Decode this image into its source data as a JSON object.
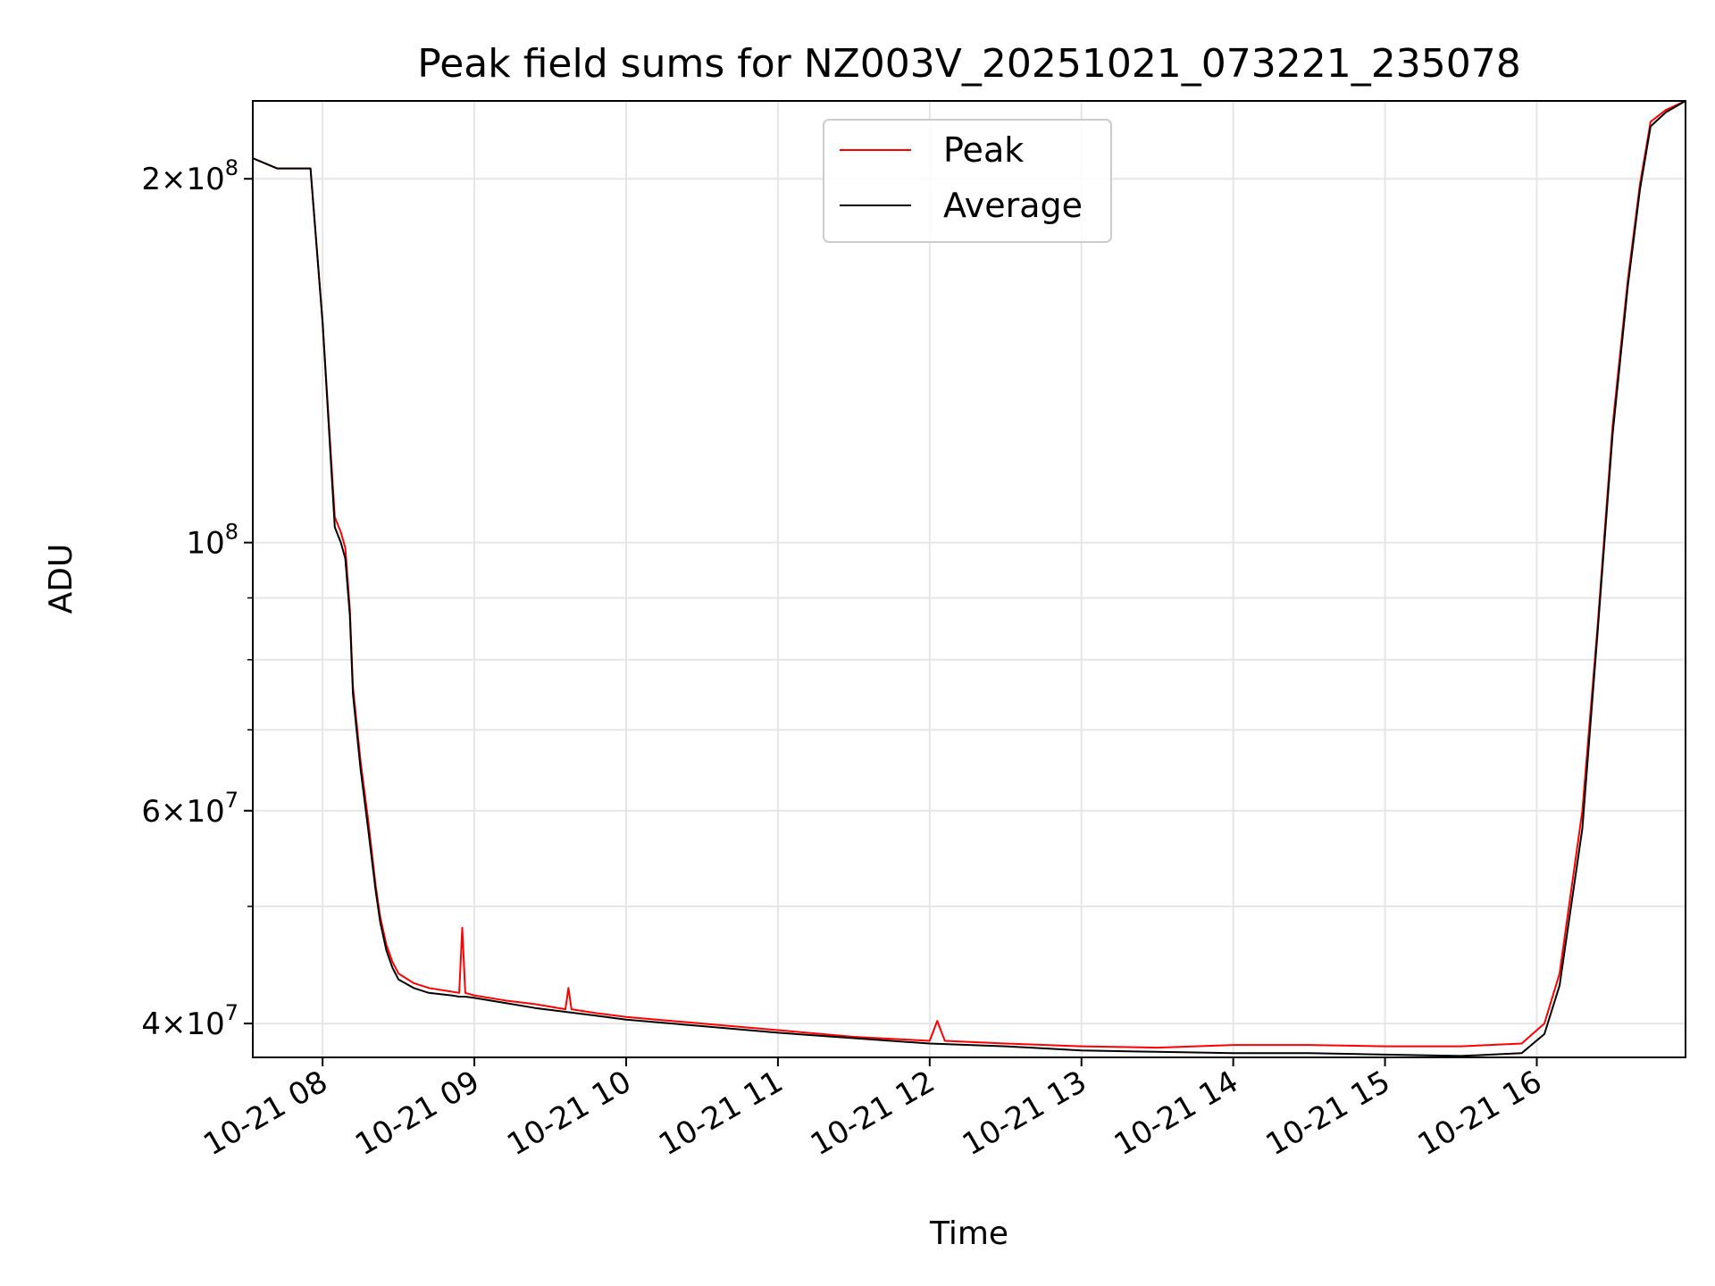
{
  "chart_data": {
    "type": "line",
    "title": "Peak field sums for NZ003V_20251021_073221_235078",
    "xlabel": "Time",
    "ylabel": "ADU",
    "x_unit": "hours since 10-21 00:00",
    "xlim": [
      7.54,
      16.98
    ],
    "ylim": [
      37500000,
      232000000
    ],
    "yscale": "log",
    "grid": true,
    "legend_position": "top-center",
    "x_ticks": [
      {
        "value": 8,
        "label": "10-21 08"
      },
      {
        "value": 9,
        "label": "10-21 09"
      },
      {
        "value": 10,
        "label": "10-21 10"
      },
      {
        "value": 11,
        "label": "10-21 11"
      },
      {
        "value": 12,
        "label": "10-21 12"
      },
      {
        "value": 13,
        "label": "10-21 13"
      },
      {
        "value": 14,
        "label": "10-21 14"
      },
      {
        "value": 15,
        "label": "10-21 15"
      },
      {
        "value": 16,
        "label": "10-21 16"
      }
    ],
    "y_major_ticks": [
      {
        "value": 40000000,
        "mantissa": "4",
        "exponent": "7"
      },
      {
        "value": 60000000,
        "mantissa": "6",
        "exponent": "7"
      },
      {
        "value": 100000000,
        "mantissa": "",
        "exponent": "8"
      },
      {
        "value": 200000000,
        "mantissa": "2",
        "exponent": "8"
      }
    ],
    "y_minor_ticks": [
      50000000,
      70000000,
      80000000,
      90000000
    ],
    "series": [
      {
        "name": "Peak",
        "color": "#ff0000",
        "x": [
          7.54,
          7.7,
          7.88,
          7.92,
          8.0,
          8.08,
          8.12,
          8.15,
          8.18,
          8.2,
          8.25,
          8.3,
          8.35,
          8.38,
          8.42,
          8.46,
          8.5,
          8.6,
          8.7,
          8.85,
          8.9,
          8.92,
          8.94,
          9.0,
          9.2,
          9.4,
          9.6,
          9.62,
          9.64,
          9.8,
          10.0,
          10.5,
          11.0,
          11.5,
          12.0,
          12.05,
          12.1,
          12.5,
          13.0,
          13.5,
          14.0,
          14.5,
          15.0,
          15.5,
          15.9,
          16.05,
          16.15,
          16.3,
          16.4,
          16.5,
          16.6,
          16.68,
          16.75,
          16.85,
          16.98
        ],
        "y": [
          208000000,
          204000000,
          204000000,
          204000000,
          152000000,
          105000000,
          102000000,
          99000000,
          88000000,
          76000000,
          66000000,
          59000000,
          52000000,
          49000000,
          46500000,
          45000000,
          44000000,
          43200000,
          42800000,
          42500000,
          42400000,
          48000000,
          42400000,
          42200000,
          41800000,
          41500000,
          41100000,
          42800000,
          41100000,
          40800000,
          40500000,
          40000000,
          39500000,
          39000000,
          38700000,
          40200000,
          38700000,
          38500000,
          38300000,
          38200000,
          38400000,
          38400000,
          38300000,
          38300000,
          38500000,
          40000000,
          44000000,
          60000000,
          85000000,
          125000000,
          165000000,
          198000000,
          223000000,
          228000000,
          232000000
        ]
      },
      {
        "name": "Average",
        "color": "#000000",
        "x": [
          7.54,
          7.7,
          7.88,
          7.92,
          8.0,
          8.08,
          8.12,
          8.15,
          8.18,
          8.2,
          8.25,
          8.3,
          8.35,
          8.38,
          8.42,
          8.46,
          8.5,
          8.6,
          8.7,
          8.85,
          8.9,
          8.94,
          9.0,
          9.2,
          9.4,
          9.6,
          9.8,
          10.0,
          10.5,
          11.0,
          11.5,
          12.0,
          12.5,
          13.0,
          13.5,
          14.0,
          14.5,
          15.0,
          15.5,
          15.9,
          16.05,
          16.15,
          16.3,
          16.4,
          16.5,
          16.6,
          16.68,
          16.75,
          16.85,
          16.98
        ],
        "y": [
          208000000,
          204000000,
          204000000,
          204000000,
          152000000,
          103000000,
          100000000,
          97000000,
          87000000,
          75000000,
          65000000,
          58000000,
          51500000,
          48500000,
          46000000,
          44500000,
          43500000,
          42800000,
          42400000,
          42200000,
          42100000,
          42100000,
          42000000,
          41600000,
          41200000,
          40900000,
          40600000,
          40300000,
          39800000,
          39300000,
          38900000,
          38500000,
          38300000,
          38000000,
          37900000,
          37800000,
          37800000,
          37700000,
          37600000,
          37800000,
          39200000,
          43000000,
          58000000,
          84000000,
          123000000,
          163000000,
          196000000,
          221000000,
          227000000,
          232000000
        ]
      }
    ]
  }
}
